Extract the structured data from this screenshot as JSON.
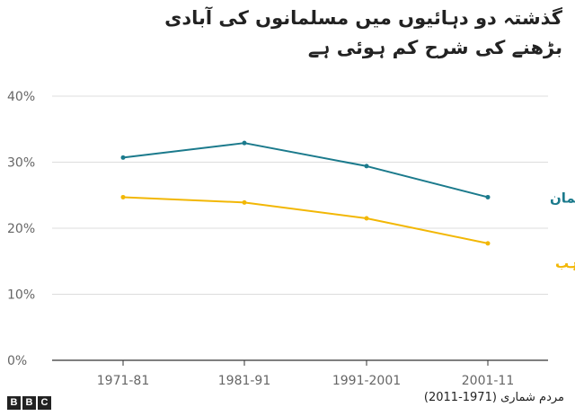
{
  "chart_data": {
    "type": "line",
    "title_lines": [
      "گذشتہ دو دہائیوں میں مسلمانوں کی آبادی",
      "بڑھنے کی شرح کم ہوئی ہے"
    ],
    "categories": [
      "1971-81",
      "1981-91",
      "1991-2001",
      "2001-11"
    ],
    "y_ticks": [
      "0%",
      "10%",
      "20%",
      "30%",
      "40%"
    ],
    "ylim": [
      0,
      40
    ],
    "grid": true,
    "series": [
      {
        "name": "مسلمان",
        "color": "#1b7a8c",
        "values": [
          30.7,
          32.9,
          29.4,
          24.7
        ]
      },
      {
        "name": "دیگر مذاہب",
        "color": "#f2b705",
        "values": [
          24.7,
          23.9,
          21.5,
          17.7
        ]
      }
    ]
  },
  "footer": {
    "source": "مردم شماری (1971-2011)",
    "logo_letters": [
      "B",
      "B",
      "C"
    ]
  }
}
